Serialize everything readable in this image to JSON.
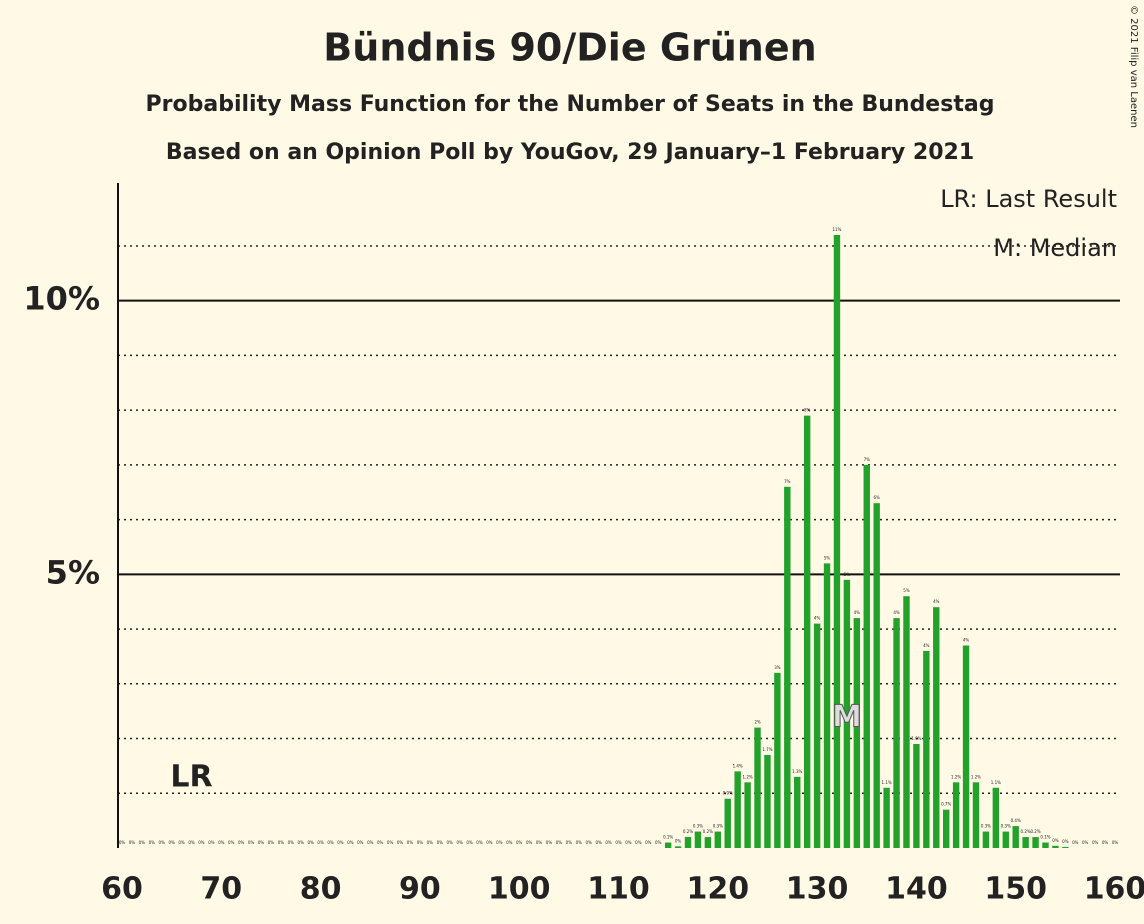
{
  "chart_data": {
    "type": "bar",
    "title": "Bündnis 90/Die Grünen",
    "subtitle": "Probability Mass Function for the Number of Seats in the Bundestag",
    "subtitle2": "Based on an Opinion Poll by YouGov, 29 January–1 February 2021",
    "copyright": "© 2021 Filip van Laenen",
    "legend": [
      "LR: Last Result",
      "M: Median"
    ],
    "last_result": 67,
    "last_result_label": "LR",
    "median": 133,
    "median_label": "M",
    "color": "#22a22a",
    "x": [
      60,
      61,
      62,
      63,
      64,
      65,
      66,
      67,
      68,
      69,
      70,
      71,
      72,
      73,
      74,
      75,
      76,
      77,
      78,
      79,
      80,
      81,
      82,
      83,
      84,
      85,
      86,
      87,
      88,
      89,
      90,
      91,
      92,
      93,
      94,
      95,
      96,
      97,
      98,
      99,
      100,
      101,
      102,
      103,
      104,
      105,
      106,
      107,
      108,
      109,
      110,
      111,
      112,
      113,
      114,
      115,
      116,
      117,
      118,
      119,
      120,
      121,
      122,
      123,
      124,
      125,
      126,
      127,
      128,
      129,
      130,
      131,
      132,
      133,
      134,
      135,
      136,
      137,
      138,
      139,
      140,
      141,
      142,
      143,
      144,
      145,
      146,
      147,
      148,
      149,
      150,
      151,
      152,
      153,
      154,
      155,
      156,
      157,
      158,
      159,
      160
    ],
    "values": [
      0,
      0,
      0,
      0,
      0,
      0,
      0,
      0,
      0,
      0,
      0,
      0,
      0,
      0,
      0,
      0,
      0,
      0,
      0,
      0,
      0,
      0,
      0,
      0,
      0,
      0,
      0,
      0,
      0,
      0,
      0,
      0,
      0,
      0,
      0,
      0,
      0,
      0,
      0,
      0,
      0,
      0,
      0,
      0,
      0,
      0,
      0,
      0,
      0,
      0,
      0,
      0,
      0,
      0,
      0,
      0.1,
      0.03,
      0.2,
      0.3,
      0.2,
      0.3,
      0.9,
      1.4,
      1.2,
      2.2,
      1.7,
      3.2,
      6.6,
      1.3,
      7.9,
      4.1,
      5.2,
      11.2,
      4.9,
      4.2,
      7.0,
      6.3,
      1.1,
      4.2,
      4.6,
      1.9,
      3.6,
      4.4,
      0.7,
      1.2,
      3.7,
      1.2,
      0.3,
      1.1,
      0.3,
      0.4,
      0.2,
      0.2,
      0.1,
      0.04,
      0.02,
      0,
      0,
      0,
      0,
      0
    ],
    "value_labels": [
      "0%",
      "0%",
      "0%",
      "0%",
      "0%",
      "0%",
      "0%",
      "0%",
      "0%",
      "0%",
      "0%",
      "0%",
      "0%",
      "0%",
      "0%",
      "0%",
      "0%",
      "0%",
      "0%",
      "0%",
      "0%",
      "0%",
      "0%",
      "0%",
      "0%",
      "0%",
      "0%",
      "0%",
      "0%",
      "0%",
      "0%",
      "0%",
      "0%",
      "0%",
      "0%",
      "0%",
      "0%",
      "0%",
      "0%",
      "0%",
      "0%",
      "0%",
      "0%",
      "0%",
      "0%",
      "0%",
      "0%",
      "0%",
      "0%",
      "0%",
      "0%",
      "0%",
      "0%",
      "0%",
      "0%",
      "0.1%",
      "0%",
      "0.2%",
      "0.3%",
      "0.2%",
      "0.3%",
      "0.9%",
      "1.4%",
      "1.2%",
      "2%",
      "1.7%",
      "3%",
      "7%",
      "1.3%",
      "8%",
      "4%",
      "5%",
      "11%",
      "5%",
      "4%",
      "7%",
      "6%",
      "1.1%",
      "4%",
      "5%",
      "1.9%",
      "4%",
      "4%",
      "0.7%",
      "1.2%",
      "4%",
      "1.2%",
      "0.3%",
      "1.1%",
      "0.3%",
      "0.4%",
      "0.2%",
      "0.2%",
      "0.1%",
      "0%",
      "0%",
      "0%",
      "0%",
      "0%",
      "0%",
      "0%"
    ],
    "xlim": [
      60,
      160
    ],
    "xticks": [
      60,
      70,
      80,
      90,
      100,
      110,
      120,
      130,
      140,
      150,
      160
    ],
    "ylim": [
      0,
      12.15
    ],
    "yticks": [
      {
        "value": 5,
        "label": "5%"
      },
      {
        "value": 10,
        "label": "10%"
      }
    ],
    "yminorticks": [
      1,
      2,
      3,
      4,
      6,
      7,
      8,
      9,
      11
    ]
  }
}
